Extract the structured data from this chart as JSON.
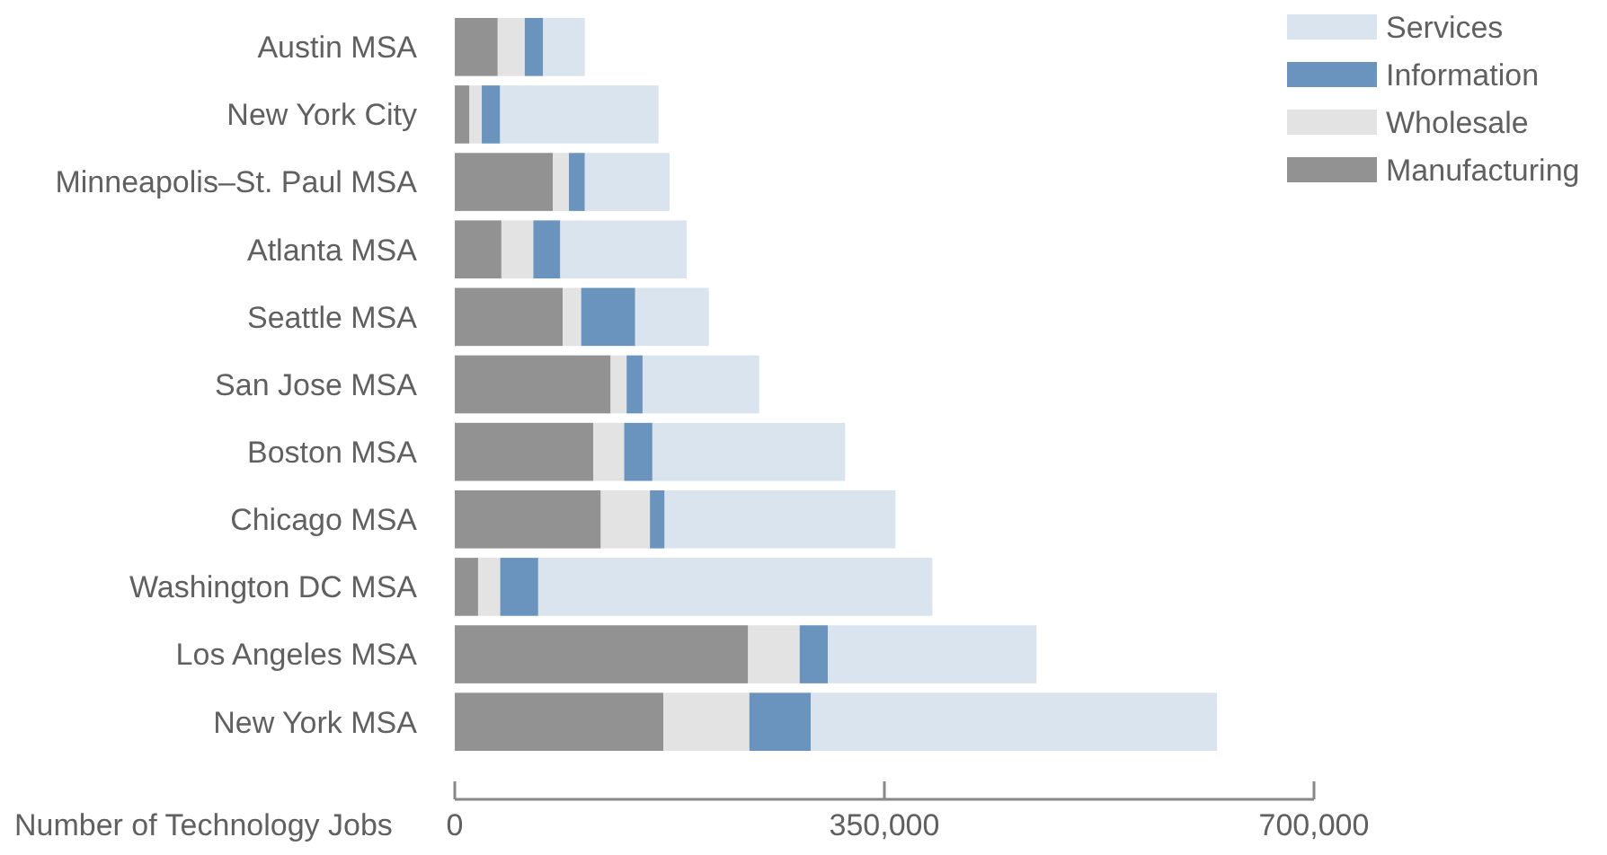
{
  "chart_data": {
    "type": "bar",
    "orientation": "horizontal",
    "stacked": true,
    "xlabel": "Number of Technology Jobs",
    "categories": [
      "Austin MSA",
      "New York City",
      "Minneapolis–St. Paul MSA",
      "Atlanta MSA",
      "Seattle MSA",
      "San Jose MSA",
      "Boston MSA",
      "Chicago MSA",
      "Washington DC MSA",
      "Los Angeles MSA",
      "New York MSA"
    ],
    "series": [
      {
        "name": "Manufacturing",
        "color": "#929292",
        "values": [
          35000,
          12000,
          80000,
          38000,
          88000,
          127000,
          113000,
          119000,
          19000,
          239000,
          170000
        ]
      },
      {
        "name": "Wholesale",
        "color": "#e3e3e3",
        "values": [
          22000,
          10000,
          13000,
          26000,
          15000,
          13000,
          25000,
          40000,
          18000,
          42000,
          70000
        ]
      },
      {
        "name": "Information",
        "color": "#6a94bd",
        "values": [
          15000,
          15000,
          13000,
          22000,
          44000,
          13000,
          23000,
          12000,
          31000,
          23000,
          50000
        ]
      },
      {
        "name": "Services",
        "color": "#dae4ee",
        "values": [
          34000,
          129000,
          69000,
          103000,
          60000,
          95000,
          157000,
          188000,
          321000,
          170000,
          331000
        ]
      }
    ],
    "xlim": [
      0,
      700000
    ],
    "xticks": [
      {
        "value": 0,
        "label": "0"
      },
      {
        "value": 350000,
        "label": "350,000"
      },
      {
        "value": 700000,
        "label": "700,000"
      }
    ],
    "legend": "top right",
    "grid": false
  }
}
